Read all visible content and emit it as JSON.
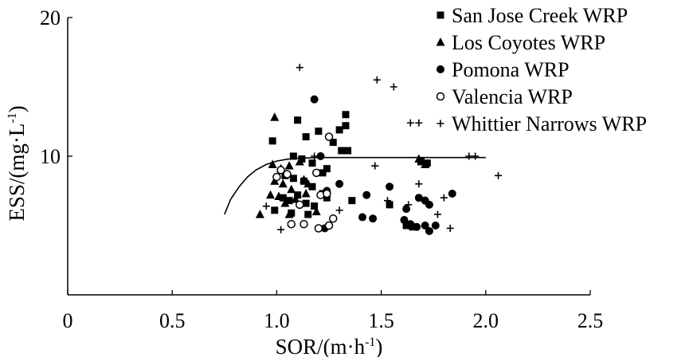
{
  "chart_data": {
    "type": "scatter",
    "title": "",
    "xlabel": "SOR/(m·h",
    "xlabel_sup": "-1",
    "xlabel_close": ")",
    "ylabel": "ESS/(mg·L",
    "ylabel_sup": "-1",
    "ylabel_close": ")",
    "xlim": [
      0,
      2.5
    ],
    "ylim": [
      0,
      20
    ],
    "xticks": [
      0,
      0.5,
      1.0,
      1.5,
      2.0,
      2.5
    ],
    "xtick_labels": [
      "0",
      "0.5",
      "1.0",
      "1.5",
      "2.0",
      "2.5"
    ],
    "yticks": [
      10,
      20
    ],
    "ytick_labels": [
      "10",
      "20"
    ],
    "legend_position": "top-right",
    "series": [
      {
        "name": "San Jose Creek WRP",
        "marker": "square",
        "points": [
          [
            0.98,
            11.1
          ],
          [
            1.1,
            12.6
          ],
          [
            1.14,
            11.4
          ],
          [
            1.2,
            11.8
          ],
          [
            1.27,
            11.0
          ],
          [
            1.3,
            11.9
          ],
          [
            1.33,
            13.0
          ],
          [
            1.33,
            12.2
          ],
          [
            1.31,
            10.4
          ],
          [
            1.34,
            10.4
          ],
          [
            1.08,
            10.0
          ],
          [
            1.12,
            9.8
          ],
          [
            1.17,
            9.5
          ],
          [
            1.22,
            8.8
          ],
          [
            1.24,
            9.1
          ],
          [
            1.04,
            8.6
          ],
          [
            1.08,
            8.4
          ],
          [
            1.13,
            8.2
          ],
          [
            1.17,
            7.8
          ],
          [
            1.22,
            7.3
          ],
          [
            1.03,
            7.0
          ],
          [
            1.06,
            6.8
          ],
          [
            1.1,
            7.2
          ],
          [
            1.14,
            6.6
          ],
          [
            1.18,
            6.4
          ],
          [
            0.99,
            6.1
          ],
          [
            1.07,
            5.9
          ],
          [
            1.15,
            5.8
          ],
          [
            1.36,
            6.8
          ],
          [
            1.54,
            6.5
          ],
          [
            1.62,
            5.0
          ],
          [
            1.65,
            4.9
          ],
          [
            1.69,
            9.6
          ],
          [
            1.72,
            9.5
          ],
          [
            1.24,
            7.0
          ]
        ]
      },
      {
        "name": "Los Coyotes WRP",
        "marker": "triangle",
        "points": [
          [
            0.99,
            12.8
          ],
          [
            0.98,
            9.4
          ],
          [
            1.02,
            9.1
          ],
          [
            1.06,
            9.3
          ],
          [
            1.11,
            9.6
          ],
          [
            0.99,
            8.2
          ],
          [
            1.03,
            8.0
          ],
          [
            1.07,
            7.6
          ],
          [
            1.13,
            8.3
          ],
          [
            1.15,
            8.0
          ],
          [
            0.97,
            7.2
          ],
          [
            1.01,
            7.1
          ],
          [
            1.04,
            6.6
          ],
          [
            1.09,
            6.9
          ],
          [
            1.14,
            7.3
          ],
          [
            0.92,
            5.8
          ],
          [
            1.06,
            5.8
          ],
          [
            1.19,
            6.0
          ],
          [
            1.68,
            9.8
          ],
          [
            1.71,
            9.4
          ]
        ]
      },
      {
        "name": "Pomona WRP",
        "marker": "circle",
        "points": [
          [
            1.18,
            14.1
          ],
          [
            1.21,
            10.0
          ],
          [
            1.24,
            7.5
          ],
          [
            1.3,
            8.0
          ],
          [
            1.43,
            7.2
          ],
          [
            1.54,
            7.8
          ],
          [
            1.62,
            6.2
          ],
          [
            1.68,
            7.0
          ],
          [
            1.71,
            6.8
          ],
          [
            1.73,
            6.5
          ],
          [
            1.84,
            7.3
          ],
          [
            1.41,
            5.6
          ],
          [
            1.46,
            5.5
          ],
          [
            1.61,
            5.4
          ],
          [
            1.64,
            5.1
          ],
          [
            1.67,
            4.9
          ],
          [
            1.71,
            5.0
          ],
          [
            1.73,
            4.6
          ],
          [
            1.76,
            5.0
          ],
          [
            1.23,
            4.8
          ]
        ]
      },
      {
        "name": "Valencia WRP",
        "marker": "open-circle",
        "points": [
          [
            1.0,
            8.5
          ],
          [
            1.02,
            9.0
          ],
          [
            1.11,
            6.5
          ],
          [
            1.21,
            7.2
          ],
          [
            1.24,
            7.3
          ],
          [
            1.25,
            11.4
          ],
          [
            1.27,
            5.5
          ],
          [
            1.2,
            4.8
          ],
          [
            1.07,
            5.1
          ],
          [
            1.13,
            5.1
          ],
          [
            1.25,
            5.0
          ],
          [
            1.19,
            8.8
          ],
          [
            1.05,
            8.7
          ]
        ]
      },
      {
        "name": "Whittier Narrows WRP",
        "marker": "plus",
        "points": [
          [
            1.11,
            16.4
          ],
          [
            1.48,
            15.5
          ],
          [
            1.56,
            15.0
          ],
          [
            1.64,
            12.4
          ],
          [
            1.68,
            12.4
          ],
          [
            1.92,
            10.0
          ],
          [
            1.95,
            10.0
          ],
          [
            2.06,
            8.6
          ],
          [
            1.47,
            9.3
          ],
          [
            1.68,
            8.0
          ],
          [
            1.8,
            7.0
          ],
          [
            1.63,
            6.5
          ],
          [
            1.53,
            6.8
          ],
          [
            1.77,
            5.8
          ],
          [
            1.64,
            5.1
          ],
          [
            1.83,
            4.8
          ],
          [
            1.3,
            6.1
          ],
          [
            0.95,
            6.4
          ],
          [
            1.02,
            4.7
          ],
          [
            1.18,
            10.0
          ]
        ]
      }
    ],
    "fit_curve": {
      "description": "saturating curve rising from x=0.75 to plateau near 9.9",
      "points": [
        [
          0.75,
          5.8
        ],
        [
          0.78,
          6.9
        ],
        [
          0.82,
          7.8
        ],
        [
          0.86,
          8.5
        ],
        [
          0.9,
          9.0
        ],
        [
          0.95,
          9.4
        ],
        [
          1.0,
          9.65
        ],
        [
          1.05,
          9.78
        ],
        [
          1.1,
          9.85
        ],
        [
          1.2,
          9.9
        ],
        [
          1.4,
          9.9
        ],
        [
          1.6,
          9.9
        ],
        [
          1.8,
          9.9
        ],
        [
          2.0,
          9.9
        ]
      ]
    }
  }
}
